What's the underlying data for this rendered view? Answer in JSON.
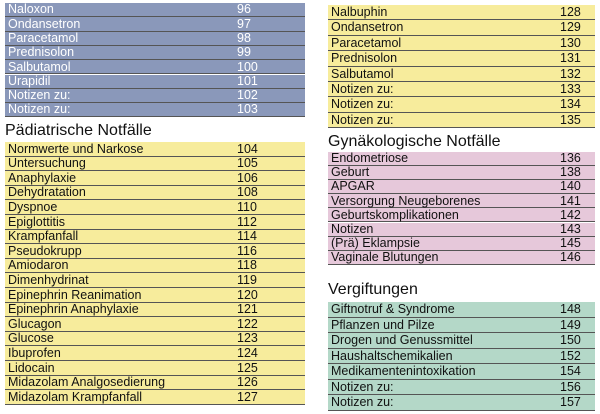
{
  "blocks": [
    {
      "rows": [
        [
          "Naloxon",
          96
        ],
        [
          "Ondansetron",
          97
        ],
        [
          "Paracetamol",
          98
        ],
        [
          "Prednisolon",
          99
        ],
        [
          "Salbutamol",
          100
        ],
        [
          "Urapidil",
          101
        ],
        [
          "Notizen zu:",
          102
        ],
        [
          "Notizen zu:",
          103
        ]
      ]
    },
    {
      "title": "Pädiatrische Notfälle",
      "rows": [
        [
          "Normwerte und Narkose",
          104
        ],
        [
          "Untersuchung",
          105
        ],
        [
          "Anaphylaxie",
          106
        ],
        [
          "Dehydratation",
          108
        ],
        [
          "Dyspnoe",
          110
        ],
        [
          "Epiglottitis",
          112
        ],
        [
          "Krampfanfall",
          114
        ],
        [
          "Pseudokrupp",
          116
        ],
        [
          "Amiodaron",
          118
        ],
        [
          "Dimenhydrinat",
          119
        ],
        [
          "Epinephrin Reanimation",
          120
        ],
        [
          "Epinephrin Anaphylaxie",
          121
        ],
        [
          "Glucagon",
          122
        ],
        [
          "Glucose",
          123
        ],
        [
          "Ibuprofen",
          124
        ],
        [
          "Lidocain",
          125
        ],
        [
          "Midazolam Analgosedierung",
          126
        ],
        [
          "Midazolam Krampfanfall",
          127
        ]
      ]
    },
    {
      "rows": [
        [
          "Nalbuphin",
          128
        ],
        [
          "Ondansetron",
          129
        ],
        [
          "Paracetamol",
          130
        ],
        [
          "Prednisolon",
          131
        ],
        [
          "Salbutamol",
          132
        ],
        [
          "Notizen zu:",
          133
        ],
        [
          "Notizen zu:",
          134
        ],
        [
          "Notizen zu:",
          135
        ]
      ]
    },
    {
      "title": "Gynäkologische Notfälle",
      "rows": [
        [
          "Endometriose",
          136
        ],
        [
          "Geburt",
          138
        ],
        [
          "APGAR",
          140
        ],
        [
          "Versorgung Neugeborenes",
          141
        ],
        [
          "Geburtskomplikationen",
          142
        ],
        [
          "Notizen",
          143
        ],
        [
          "(Prä) Eklampsie",
          145
        ],
        [
          "Vaginale Blutungen",
          146
        ]
      ]
    },
    {
      "title": "Vergiftungen",
      "rows": [
        [
          "Giftnotruf & Syndrome",
          148
        ],
        [
          "Pflanzen und Pilze",
          149
        ],
        [
          "Drogen und Genussmittel",
          150
        ],
        [
          "Haushaltschemikalien",
          152
        ],
        [
          "Medikamentenintoxikation",
          154
        ],
        [
          "Notizen zu:",
          156
        ],
        [
          "Notizen zu:",
          157
        ]
      ]
    }
  ]
}
